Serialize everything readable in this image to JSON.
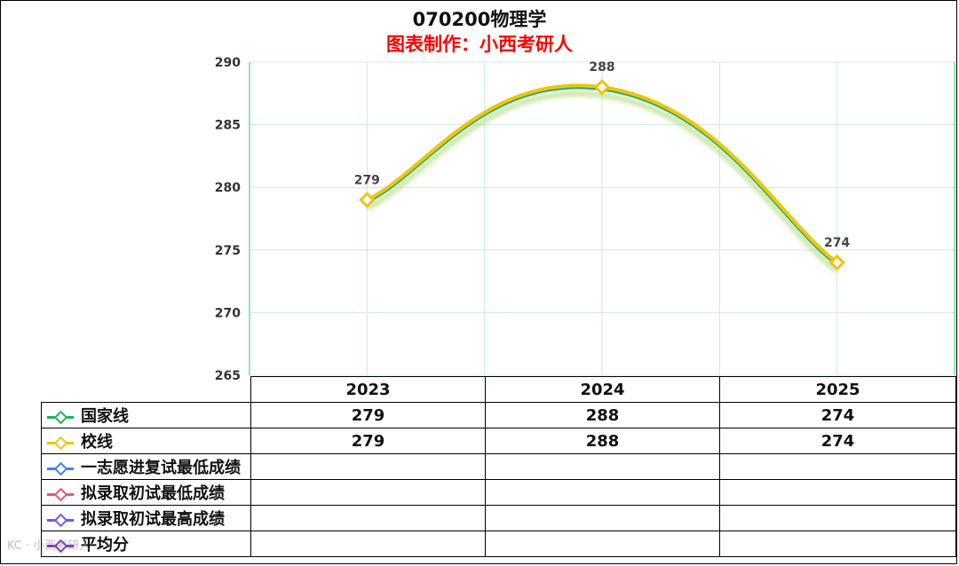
{
  "chart_data": {
    "type": "line",
    "title": "070200物理学",
    "subtitle": "图表制作：小西考研人",
    "categories": [
      "2023",
      "2024",
      "2025"
    ],
    "ylim": [
      265,
      290
    ],
    "yticks": [
      265,
      270,
      275,
      280,
      285,
      290
    ],
    "grid": true,
    "legend": "bottom data table",
    "data_labels": [
      "279",
      "288",
      "274"
    ],
    "series": [
      {
        "name": "国家线",
        "color": "#27ae60",
        "values": [
          279,
          288,
          274
        ]
      },
      {
        "name": "校线",
        "color": "#f1c40f",
        "values": [
          279,
          288,
          274
        ]
      },
      {
        "name": "一志愿进复试最低成绩",
        "color": "#3b82f6",
        "values": [
          null,
          null,
          null
        ]
      },
      {
        "name": "拟录取初试最低成绩",
        "color": "#f0506e",
        "values": [
          null,
          null,
          null
        ]
      },
      {
        "name": "拟录取初试最高成绩",
        "color": "#6b5bf0",
        "values": [
          null,
          null,
          null
        ]
      },
      {
        "name": "平均分",
        "color": "#7b2fd6",
        "values": [
          null,
          null,
          null
        ]
      }
    ],
    "table_rows": [
      [
        "279",
        "288",
        "274"
      ],
      [
        "279",
        "288",
        "274"
      ],
      [
        "",
        "",
        ""
      ],
      [
        "",
        "",
        ""
      ],
      [
        "",
        "",
        ""
      ],
      [
        "",
        "",
        ""
      ]
    ]
  }
}
